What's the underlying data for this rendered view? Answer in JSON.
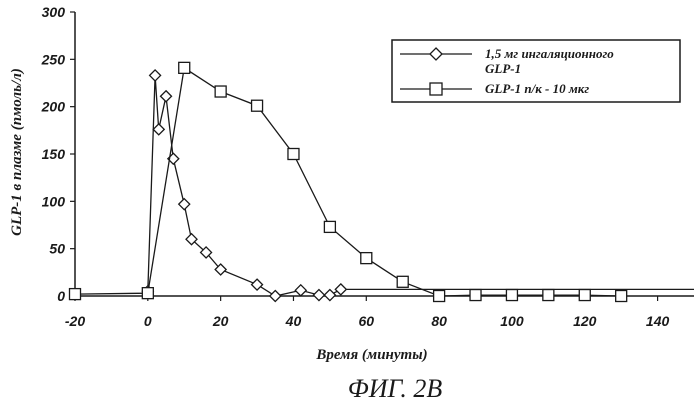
{
  "chart_data": {
    "type": "line",
    "xlabel": "Время (минуты)",
    "ylabel": "GLP-1 в плазме (пмоль/л)",
    "xlim": [
      -20,
      150
    ],
    "ylim": [
      0,
      300
    ],
    "x_ticks": [
      -20,
      0,
      20,
      40,
      60,
      80,
      100,
      120,
      140
    ],
    "y_ticks": [
      0,
      50,
      100,
      150,
      200,
      250,
      300
    ],
    "grid": false,
    "legend_position": "top-right",
    "series": [
      {
        "name": "1,5 мг ингаляционного GLP-1",
        "marker": "diamond",
        "x": [
          0,
          2,
          3,
          5,
          7,
          10,
          12,
          16,
          20,
          30,
          35,
          42,
          47,
          50,
          53,
          150
        ],
        "y": [
          5,
          233,
          176,
          211,
          145,
          97,
          60,
          46,
          28,
          12,
          0,
          6,
          1,
          1,
          7,
          7
        ]
      },
      {
        "name": "GLP-1 п/к - 10 мкг",
        "marker": "square",
        "x": [
          -20,
          0,
          10,
          20,
          30,
          40,
          50,
          60,
          70,
          80,
          90,
          100,
          110,
          120,
          130
        ],
        "y": [
          2,
          3,
          241,
          216,
          201,
          150,
          73,
          40,
          15,
          0,
          1,
          1,
          1,
          1,
          0
        ]
      }
    ]
  },
  "caption": "ФИГ. 2В"
}
